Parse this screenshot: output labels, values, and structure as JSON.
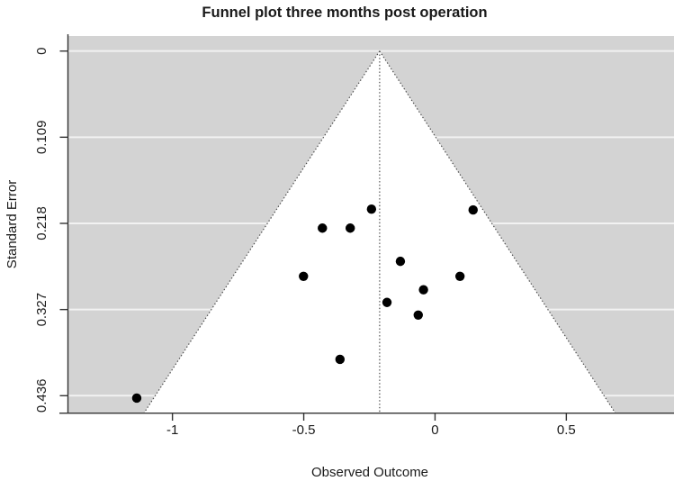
{
  "chart_data": {
    "type": "scatter",
    "subtype": "funnel_plot",
    "title": "Funnel plot three months post operation",
    "xlabel": "Observed Outcome",
    "ylabel": "Standard Error",
    "xticks": [
      -1,
      -0.5,
      0,
      0.5
    ],
    "xtick_labels": [
      "-1",
      "-0.5",
      "0",
      "0.5"
    ],
    "yticks": [
      0,
      0.109,
      0.218,
      0.327,
      0.436
    ],
    "ytick_labels": [
      "0",
      "0.109",
      "0.218",
      "0.327",
      "0.436"
    ],
    "xlim": [
      -1.398,
      0.91
    ],
    "se_lim": [
      -0.019,
      0.4573
    ],
    "grid": true,
    "center_estimate": -0.211,
    "ci_multiplier": 1.96,
    "colors": {
      "outer_region_fill": "#d3d3d3",
      "funnel_fill": "#ffffff",
      "gridline": "#f2f2f2",
      "point": "#000000",
      "funnel_border": "#4a4a4a",
      "axis": "#333333"
    },
    "points": [
      {
        "x": -0.242,
        "se": 0.2
      },
      {
        "x": -0.429,
        "se": 0.224
      },
      {
        "x": -0.323,
        "se": 0.224
      },
      {
        "x": 0.145,
        "se": 0.201
      },
      {
        "x": -0.132,
        "se": 0.266
      },
      {
        "x": -0.501,
        "se": 0.285
      },
      {
        "x": 0.095,
        "se": 0.285
      },
      {
        "x": -0.044,
        "se": 0.302
      },
      {
        "x": -0.183,
        "se": 0.318
      },
      {
        "x": -0.064,
        "se": 0.334
      },
      {
        "x": -0.362,
        "se": 0.39
      },
      {
        "x": -1.136,
        "se": 0.439
      }
    ]
  }
}
